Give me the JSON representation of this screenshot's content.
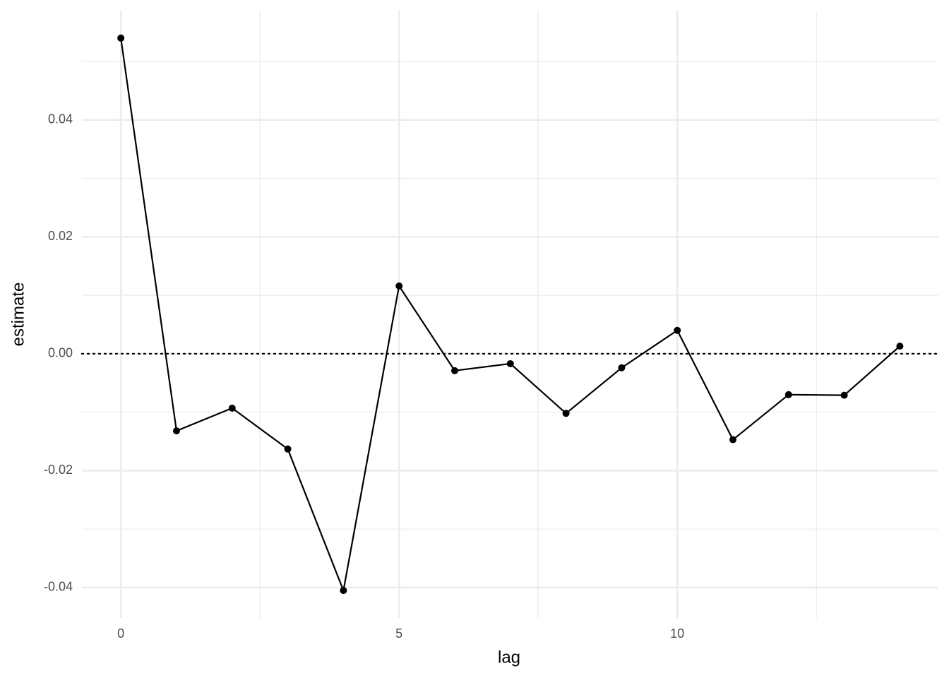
{
  "chart_data": {
    "type": "line",
    "x_label": "lag",
    "y_label": "estimate",
    "x": [
      0,
      1,
      2,
      3,
      4,
      5,
      6,
      7,
      8,
      9,
      10,
      11,
      12,
      13,
      14
    ],
    "series": [
      {
        "color": "#000000",
        "values": [
          0.054,
          -0.0132,
          -0.0093,
          -0.0163,
          -0.0405,
          0.0116,
          -0.0029,
          -0.0017,
          -0.0102,
          -0.0024,
          0.004,
          -0.0147,
          -0.007,
          -0.0071,
          0.0013
        ]
      }
    ],
    "xlim": [
      -0.7,
      14.68
    ],
    "ylim": [
      -0.0452,
      0.0587
    ],
    "xticks": [
      0,
      5,
      10
    ],
    "yticks": [
      -0.04,
      -0.02,
      {
        "value": 0,
        "label": "0.00"
      },
      0.02,
      0.04
    ],
    "x_minor_ticks": [
      2.5,
      7.5,
      12.5
    ],
    "y_minor_ticks": [
      -0.03,
      -0.01,
      0.01,
      0.03,
      0.05
    ],
    "hline": 0,
    "grid": true
  }
}
